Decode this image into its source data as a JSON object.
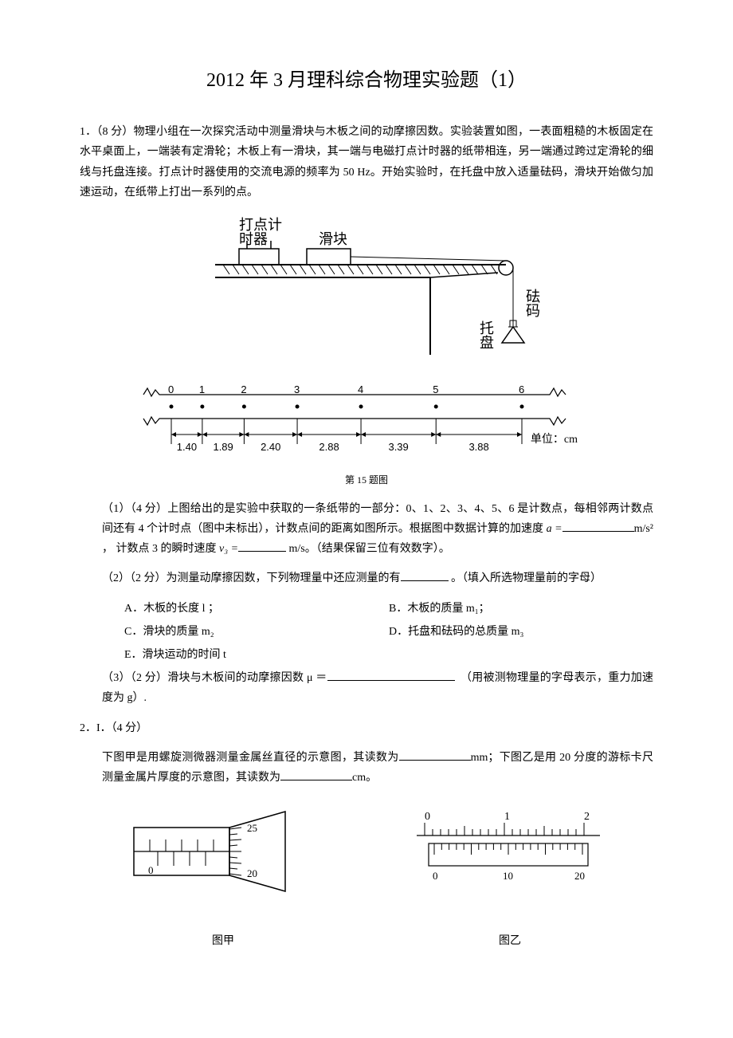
{
  "title": "2012 年 3 月理科综合物理实验题（1）",
  "q1": {
    "num": "1．（8 分）",
    "stem": "物理小组在一次探究活动中测量滑块与木板之间的动摩擦因数。实验装置如图，一表面粗糙的木板固定在水平桌面上，一端装有定滑轮；木板上有一滑块，其一端与电磁打点计时器的纸带相连，另一端通过跨过定滑轮的细线与托盘连接。打点计时器使用的交流电源的频率为 50 Hz。开始实验时，在托盘中放入适量砝码，滑块开始做匀加速运动，在纸带上打出一系列的点。",
    "fig_caption": "第 15 题图",
    "apparatus": {
      "timer_label": "打点计\n时器",
      "block_label": "滑块",
      "weight_label": "砝\n码",
      "tray_label": "托\n盘"
    },
    "tape": {
      "ticks": [
        "0",
        "1",
        "2",
        "3",
        "4",
        "5",
        "6"
      ],
      "dists": [
        "1.40",
        "1.89",
        "2.40",
        "2.88",
        "3.39",
        "3.88"
      ],
      "unit_label": "单位：cm"
    },
    "p1": {
      "num": "（1）（4 分）",
      "text_a": "上图给出的是实验中获取的一条纸带的一部分：0、1、2、3、4、5、6 是计数点，每相邻两计数点间还有 4 个计时点（图中未标出），计数点间的距离如图所示。根据图中数据计算的加速度 ",
      "a_label": "a =",
      "unit_a": "m/s²  ， 计数点 3 的瞬时速度 ",
      "v_label": "v₃ =",
      "unit_v": "m/s。（结果保留三位有效数字）。"
    },
    "p2": {
      "num": "（2）（2 分）",
      "text": "为测量动摩擦因数，下列物理量中还应测量的有",
      "tail": " 。（填入所选物理量前的字母）",
      "opts": {
        "A": "A．木板的长度 l ；",
        "B": "B．木板的质量 m₁；",
        "C": "C．滑块的质量 m₂",
        "D": "D．托盘和砝码的总质量 m₃",
        "E": "E．滑块运动的时间 t"
      }
    },
    "p3": {
      "num": "（3）（2 分）",
      "text_a": "滑块与木板间的动摩擦因数 μ ＝",
      "tail": "（用被测物理量的字母表示，重力加速度为 g）."
    }
  },
  "q2": {
    "num": "2．",
    "part": "I．（4 分）",
    "text_a": "下图甲是用螺旋测微器测量金属丝直径的示意图，其读数为",
    "unit_a": "mm；下图乙是用 20 分度的游标卡尺测量金属片厚度的示意图，其读数为",
    "unit_b": "cm。",
    "cap_a": "图甲",
    "cap_b": "图乙",
    "micrometer": {
      "main_ticks": 5,
      "thimble_top": "25",
      "thimble_mid": "",
      "thimble_bot": "20",
      "thimble_zero": "0"
    },
    "vernier": {
      "main_labels": [
        "0",
        "1",
        "2"
      ],
      "vern_labels": [
        "0",
        "10",
        "20"
      ]
    }
  },
  "style": {
    "line_color": "#000000",
    "hatch_color": "#000000",
    "font": "SimSun",
    "bg": "#ffffff"
  }
}
